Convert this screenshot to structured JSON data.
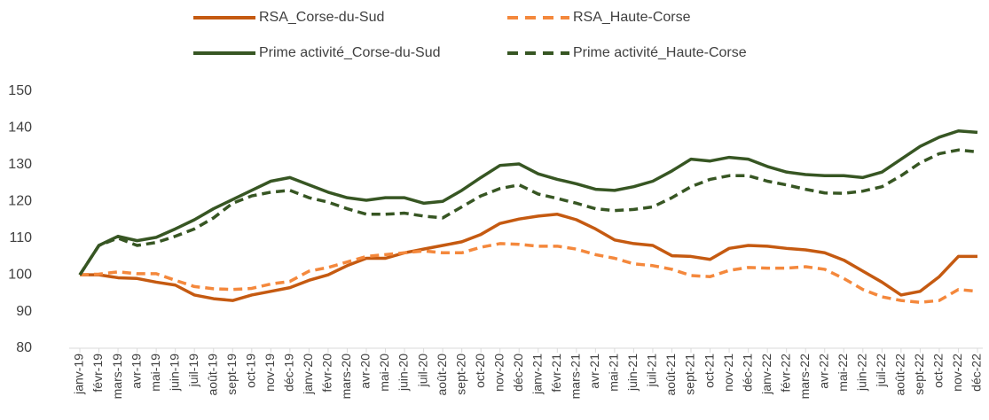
{
  "chart_data": {
    "type": "line",
    "categories": [
      "janv-19",
      "févr-19",
      "mars-19",
      "avr-19",
      "mai-19",
      "juin-19",
      "juil-19",
      "août-19",
      "sept-19",
      "oct-19",
      "nov-19",
      "déc-19",
      "janv-20",
      "févr-20",
      "mars-20",
      "avr-20",
      "mai-20",
      "juin-20",
      "juil-20",
      "août-20",
      "sept-20",
      "oct-20",
      "nov-20",
      "déc-20",
      "janv-21",
      "févr-21",
      "mars-21",
      "avr-21",
      "mai-21",
      "juin-21",
      "juil-21",
      "août-21",
      "sept-21",
      "oct-21",
      "nov-21",
      "déc-21",
      "janv-22",
      "févr-22",
      "mars-22",
      "avr-22",
      "mai-22",
      "juin-22",
      "juil-22",
      "août-22",
      "sept-22",
      "oct-22",
      "nov-22",
      "déc-22"
    ],
    "series": [
      {
        "name": "RSA_Corse-du-Sud",
        "color": "#c55a11",
        "dashed": false,
        "values": [
          100,
          100,
          99.2,
          99,
          98,
          97.2,
          94.5,
          93.5,
          93,
          94.5,
          95.5,
          96.5,
          98.5,
          100,
          102.5,
          104.5,
          104.5,
          106,
          107,
          108,
          109,
          111,
          114,
          115.2,
          116,
          116.5,
          115,
          112.5,
          109.5,
          108.5,
          108,
          105.2,
          105,
          104.2,
          107.2,
          108,
          107.8,
          107.2,
          106.8,
          106,
          104,
          101,
          98,
          94.5,
          95.5,
          99.5,
          105,
          105
        ]
      },
      {
        "name": "RSA_Haute-Corse",
        "color": "#f4883c",
        "dashed": true,
        "values": [
          100,
          100.2,
          100.8,
          100.3,
          100.3,
          98.5,
          96.8,
          96.2,
          96,
          96.3,
          97.5,
          98.2,
          101,
          102,
          103.5,
          105,
          105.5,
          106,
          106.5,
          106,
          106,
          107.5,
          108.5,
          108.3,
          107.8,
          107.8,
          107,
          105.5,
          104.5,
          103,
          102.5,
          101.5,
          99.8,
          99.5,
          101.2,
          102,
          101.8,
          101.8,
          102.2,
          101.5,
          99,
          96,
          94,
          93,
          92.5,
          93,
          96,
          95.5
        ]
      },
      {
        "name": "Prime activité_Corse-du-Sud",
        "color": "#375623",
        "dashed": false,
        "values": [
          100,
          108,
          110.5,
          109.3,
          110.2,
          112.5,
          115,
          118,
          120.5,
          123,
          125.5,
          126.5,
          124.5,
          122.5,
          121,
          120.3,
          121,
          121,
          119.5,
          120,
          123,
          126.5,
          129.8,
          130.2,
          127.5,
          126,
          124.8,
          123.3,
          123,
          124,
          125.5,
          128.3,
          131.5,
          131,
          132,
          131.5,
          129.5,
          128,
          127.3,
          127,
          127,
          126.5,
          128,
          131.5,
          135,
          137.5,
          139.2,
          138.8
        ]
      },
      {
        "name": "Prime activité_Haute-Corse",
        "color": "#375623",
        "dashed": true,
        "values": [
          100,
          108,
          110,
          108,
          108.8,
          110.5,
          112.5,
          115.5,
          119.5,
          121.5,
          122.5,
          123,
          121,
          119.8,
          118,
          116.5,
          116.5,
          116.8,
          116,
          115.5,
          118.5,
          121.5,
          123.5,
          124.5,
          122,
          120.8,
          119.5,
          118,
          117.5,
          117.8,
          118.5,
          121,
          124,
          126,
          127,
          127,
          125.5,
          124.5,
          123.3,
          122.3,
          122.2,
          122.8,
          124,
          127,
          130.5,
          133,
          134,
          133.5
        ]
      }
    ],
    "ylim": [
      80,
      150
    ],
    "yticks": [
      80,
      90,
      100,
      110,
      120,
      130,
      140,
      150
    ],
    "grid": false,
    "legend": "top"
  }
}
